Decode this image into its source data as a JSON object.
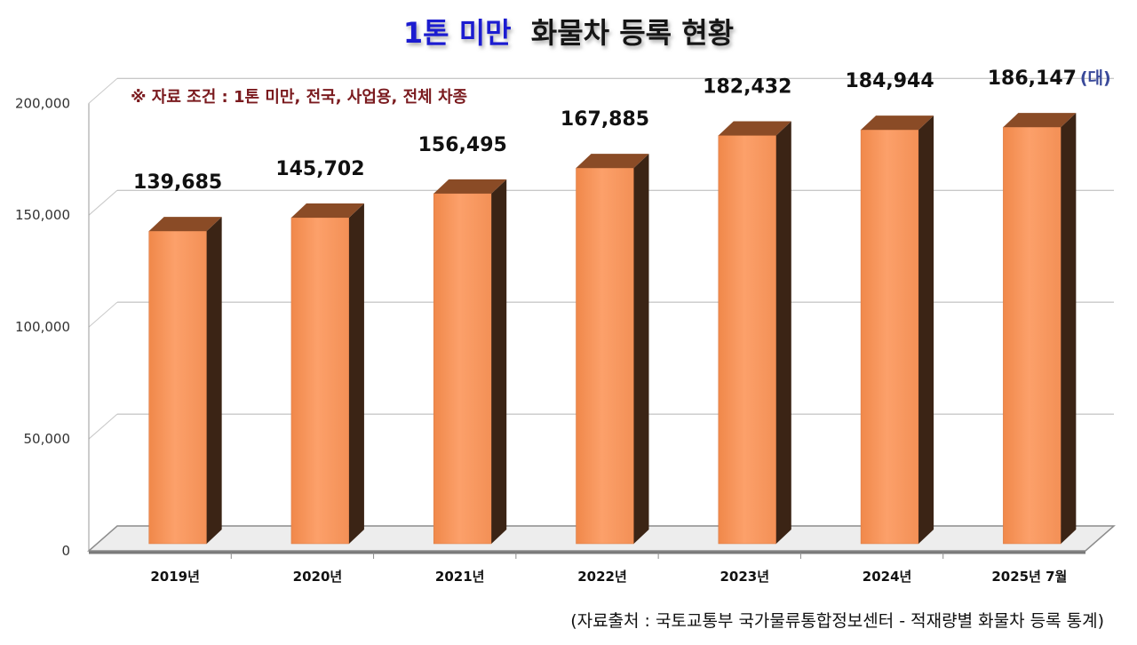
{
  "chart_data": {
    "type": "bar",
    "title_highlight": "1톤 미만",
    "title_rest": "화물차 등록 현황",
    "categories": [
      "2019년",
      "2020년",
      "2021년",
      "2022년",
      "2023년",
      "2024년",
      "2025년 7월"
    ],
    "values": [
      139685,
      145702,
      156495,
      167885,
      182432,
      184944,
      186147
    ],
    "value_labels": [
      "139,685",
      "145,702",
      "156,495",
      "167,885",
      "182,432",
      "184,944",
      "186,147"
    ],
    "unit": "(대)",
    "ylim": [
      0,
      200000
    ],
    "yticks": [
      0,
      50000,
      100000,
      150000,
      200000
    ],
    "ytick_labels": [
      "0",
      "50,000",
      "100,000",
      "150,000",
      "200,000"
    ],
    "grid": true,
    "condition_note": "※ 자료 조건 : 1톤 미만, 전국, 사업용, 전체 차종",
    "source": "(자료출처 : 국토교통부 국가물류통합정보센터 - 적재량별 화물차 등록 통계)"
  },
  "colors": {
    "bar_front": "#f99a5e",
    "bar_top": "#8a4b26",
    "bar_side": "#3b2415",
    "title_accent": "#1a1fd0",
    "condition_text": "#7a1a1e",
    "unit_text": "#3a4a9a"
  }
}
